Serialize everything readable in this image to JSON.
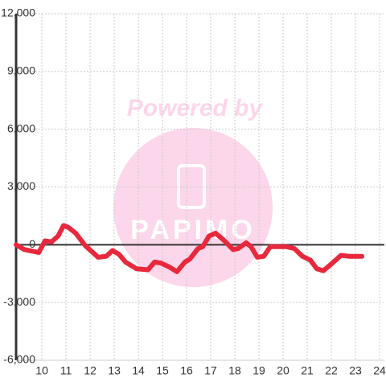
{
  "chart_data": {
    "type": "line",
    "watermark": {
      "text": "Powered by",
      "logo": "PAPIMO"
    },
    "xlim": [
      8.93,
      24.2
    ],
    "xticks": [
      10,
      11,
      12,
      13,
      14,
      15,
      16,
      17,
      18,
      19,
      20,
      21,
      22,
      23,
      24
    ],
    "ylim": [
      -6000,
      12000
    ],
    "yticks": [
      {
        "value": -6000,
        "label": "-6,000"
      },
      {
        "value": -3000,
        "label": "-3,000"
      },
      0,
      {
        "value": 3000,
        "label": "3,000"
      },
      {
        "value": 6000,
        "label": "6,000"
      },
      {
        "value": 9000,
        "label": "9,000"
      },
      {
        "value": 12000,
        "label": "12,000"
      }
    ],
    "grid": true,
    "series": [
      {
        "color": "#e8283c",
        "x": [
          8.93,
          9.27,
          9.87,
          10.13,
          10.4,
          10.67,
          10.9,
          11.1,
          11.4,
          11.8,
          12.33,
          12.67,
          12.93,
          13.2,
          13.47,
          13.93,
          14.4,
          14.67,
          14.93,
          15.27,
          15.6,
          15.93,
          16.13,
          16.47,
          16.67,
          16.93,
          17.2,
          17.53,
          17.93,
          18.13,
          18.47,
          18.67,
          18.93,
          19.2,
          19.47,
          20.13,
          20.47,
          20.8,
          21.13,
          21.4,
          21.67,
          22,
          22.4,
          22.73,
          23.27
        ],
        "values": [
          0,
          -250,
          -400,
          200,
          150,
          450,
          1000,
          900,
          600,
          -50,
          -650,
          -600,
          -300,
          -500,
          -900,
          -1250,
          -1300,
          -900,
          -950,
          -1150,
          -1400,
          -900,
          -750,
          -200,
          -100,
          450,
          600,
          250,
          -250,
          -200,
          100,
          -100,
          -650,
          -600,
          -100,
          -100,
          -200,
          -600,
          -800,
          -1250,
          -1350,
          -1000,
          -550,
          -600,
          -600
        ]
      }
    ]
  }
}
